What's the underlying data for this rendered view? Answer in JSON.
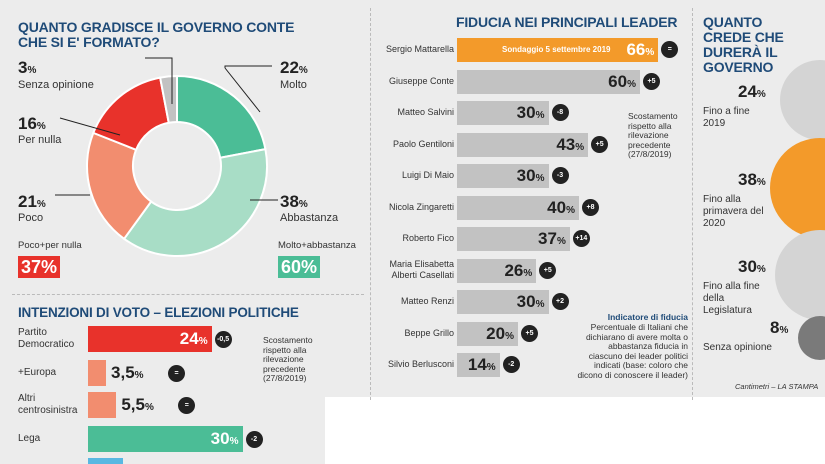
{
  "gradimento": {
    "title": "Quanto gradisce il governo Conte che si e' formato?",
    "labels": [
      {
        "value": "3",
        "unit": "%",
        "name": "Senza opinione"
      },
      {
        "value": "16",
        "unit": "%",
        "name": "Per nulla"
      },
      {
        "value": "21",
        "unit": "%",
        "name": "Poco"
      },
      {
        "value": "22",
        "unit": "%",
        "name": "Molto"
      },
      {
        "value": "38",
        "unit": "%",
        "name": "Abbastanza"
      }
    ],
    "neg_total_label": "Poco+per nulla",
    "neg_total_value": "37%",
    "pos_total_label": "Molto+abbastanza",
    "pos_total_value": "60%"
  },
  "fiducia": {
    "title": "Fiducia nei principali leader",
    "highlight_note": "Sondaggio 5 settembre 2019",
    "leaders": [
      {
        "name": "Sergio Mattarella",
        "value": "66",
        "change": "="
      },
      {
        "name": "Giuseppe Conte",
        "value": "60",
        "change": "+5"
      },
      {
        "name": "Matteo Salvini",
        "value": "30",
        "change": "-8"
      },
      {
        "name": "Paolo Gentiloni",
        "value": "43",
        "change": "+5"
      },
      {
        "name": "Luigi Di Maio",
        "value": "30",
        "change": "-3"
      },
      {
        "name": "Nicola Zingaretti",
        "value": "40",
        "change": "+8"
      },
      {
        "name": "Roberto Fico",
        "value": "37",
        "change": "+14"
      },
      {
        "name": "Maria Elisabetta Alberti Casellati",
        "value": "26",
        "change": "+5"
      },
      {
        "name": "Matteo Renzi",
        "value": "30",
        "change": "+2"
      },
      {
        "name": "Beppe Grillo",
        "value": "20",
        "change": "+5"
      },
      {
        "name": "Silvio Berlusconi",
        "value": "14",
        "change": "-2"
      }
    ],
    "scostamento_note": "Scostamento rispetto alla rilevazione precedente (27/8/2019)",
    "indicator_title": "Indicatore di fiducia",
    "indicator_text": "Percentuale di Italiani che dichiarano di avere molta o abbastanza fiducia in ciascuno dei leader politici indicati (base: coloro che dicono di conoscere il leader)"
  },
  "durata": {
    "title": "Quanto crede che durerà il governo",
    "items": [
      {
        "value": "24",
        "name": "Fino a fine 2019"
      },
      {
        "value": "38",
        "name": "Fino alla primavera del 2020"
      },
      {
        "value": "30",
        "name": "Fino alla fine della Legislatura"
      },
      {
        "value": "8",
        "name": "Senza opinione"
      }
    ],
    "credit": "Cantimetri – LA STAMPA"
  },
  "voto": {
    "title": "Intenzioni di voto – Elezioni politiche",
    "parties": [
      {
        "name": "Partito Democratico",
        "value": "24",
        "change": "-0,5"
      },
      {
        "name": "+Europa",
        "value": "3,5",
        "change": "="
      },
      {
        "name": "Altri centrosinistra",
        "value": "5,5",
        "change": "="
      },
      {
        "name": "Lega",
        "value": "30",
        "change": "-2"
      }
    ],
    "scostamento_note": "Scostamento rispetto alla rilevazione precedente (27/8/2019)"
  },
  "colors": {
    "title_blue": "#1f4b78",
    "green": "#4bbd96",
    "green_light": "#a8ddc6",
    "red": "#e8322b",
    "salmon": "#f28d6f",
    "orange": "#f39a2a",
    "grey_bar": "#c2c2c2",
    "grey_dark": "#7a7a7a"
  },
  "chart_data": [
    {
      "type": "pie",
      "title": "Quanto gradisce il governo Conte che si e' formato?",
      "categories": [
        "Molto",
        "Abbastanza",
        "Poco",
        "Per nulla",
        "Senza opinione"
      ],
      "values": [
        22,
        38,
        21,
        16,
        3
      ]
    },
    {
      "type": "bar",
      "title": "Fiducia nei principali leader",
      "categories": [
        "Sergio Mattarella",
        "Giuseppe Conte",
        "Matteo Salvini",
        "Paolo Gentiloni",
        "Luigi Di Maio",
        "Nicola Zingaretti",
        "Roberto Fico",
        "Maria Elisabetta Alberti Casellati",
        "Matteo Renzi",
        "Beppe Grillo",
        "Silvio Berlusconi"
      ],
      "values": [
        66,
        60,
        30,
        43,
        30,
        40,
        37,
        26,
        30,
        20,
        14
      ],
      "changes": [
        "=",
        "+5",
        "-8",
        "+5",
        "-3",
        "+8",
        "+14",
        "+5",
        "+2",
        "+5",
        "-2"
      ]
    },
    {
      "type": "bar",
      "title": "Intenzioni di voto – Elezioni politiche",
      "categories": [
        "Partito Democratico",
        "+Europa",
        "Altri centrosinistra",
        "Lega"
      ],
      "values": [
        24,
        3.5,
        5.5,
        30
      ],
      "changes": [
        "-0,5",
        "=",
        "=",
        "-2"
      ]
    },
    {
      "type": "pie",
      "title": "Quanto crede che durerà il governo",
      "categories": [
        "Fino a fine 2019",
        "Fino alla primavera del 2020",
        "Fino alla fine della Legislatura",
        "Senza opinione"
      ],
      "values": [
        24,
        38,
        30,
        8
      ]
    }
  ]
}
